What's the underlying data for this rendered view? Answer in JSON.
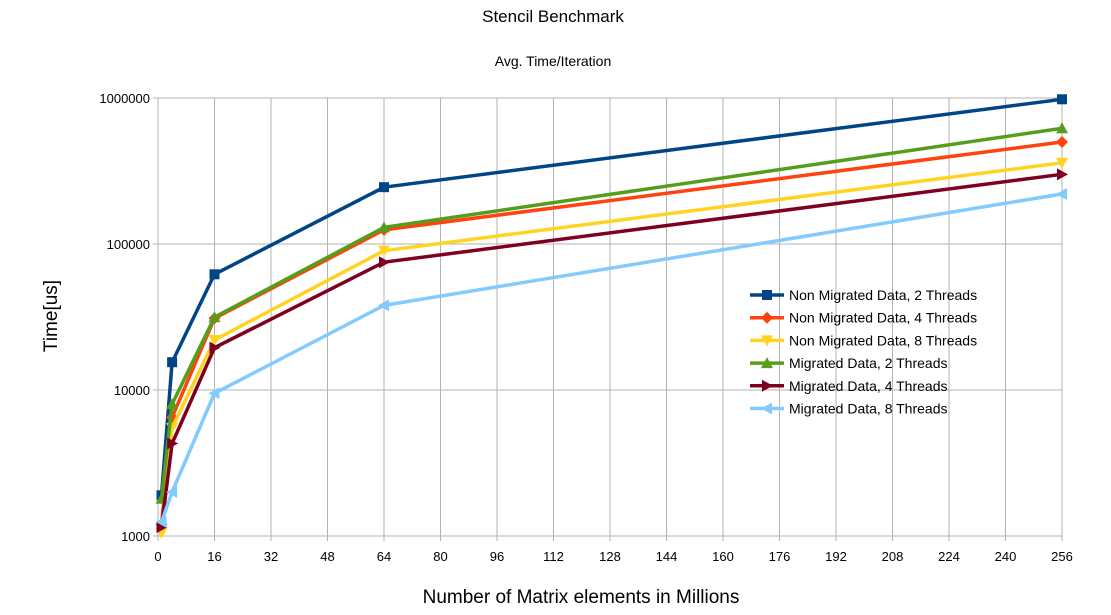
{
  "chart_data": {
    "type": "line",
    "title": "Stencil Benchmark",
    "subtitle": "Avg. Time/Iteration",
    "xlabel": "Number of Matrix elements in Millions",
    "ylabel": "Time[us]",
    "xlim": [
      0,
      256
    ],
    "ylim": [
      1000,
      1000000
    ],
    "yscale": "log",
    "xticks": [
      "0",
      "16",
      "32",
      "48",
      "64",
      "80",
      "96",
      "112",
      "128",
      "144",
      "160",
      "176",
      "192",
      "208",
      "224",
      "240",
      "256"
    ],
    "yticks": [
      "1000",
      "10000",
      "100000",
      "1000000"
    ],
    "grid": true,
    "legend_position": "right",
    "x": [
      1,
      4,
      16,
      64,
      256
    ],
    "series": [
      {
        "name": "Non Migrated Data, 2 Threads",
        "color": "#004586",
        "marker": "square",
        "values": [
          1900,
          15500,
          62000,
          245000,
          980000
        ]
      },
      {
        "name": "Non Migrated Data, 4 Threads",
        "color": "#ff420e",
        "marker": "diamond",
        "values": [
          1200,
          6500,
          31000,
          125000,
          500000
        ]
      },
      {
        "name": "Non Migrated Data, 8 Threads",
        "color": "#ffd320",
        "marker": "triangle-down",
        "values": [
          1050,
          5500,
          22000,
          90000,
          360000
        ]
      },
      {
        "name": "Migrated Data, 2 Threads",
        "color": "#579d1c",
        "marker": "triangle-up",
        "values": [
          1800,
          8000,
          31500,
          130000,
          620000
        ]
      },
      {
        "name": "Migrated Data, 4 Threads",
        "color": "#7e0021",
        "marker": "triangle-right",
        "values": [
          1150,
          4300,
          19500,
          75000,
          300000
        ]
      },
      {
        "name": "Migrated Data, 8 Threads",
        "color": "#83caff",
        "marker": "triangle-left",
        "values": [
          1250,
          2000,
          9500,
          38000,
          220000
        ]
      }
    ]
  }
}
